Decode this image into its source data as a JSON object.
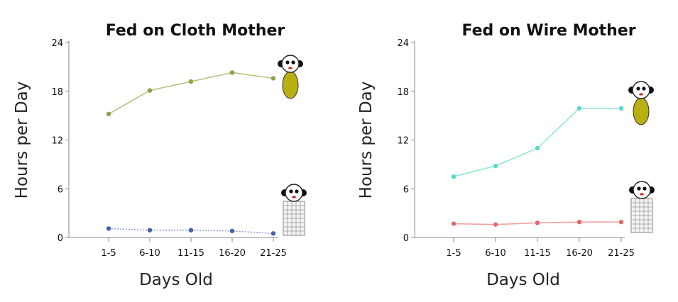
{
  "chart_data": [
    {
      "type": "line",
      "title": "Fed on Cloth Mother",
      "xlabel": "Days Old",
      "ylabel": "Hours per Day",
      "categories": [
        "1-5",
        "6-10",
        "11-15",
        "16-20",
        "21-25"
      ],
      "ylim": [
        0,
        24
      ],
      "yticks": [
        0,
        6,
        12,
        18,
        24
      ],
      "grid": false,
      "series": [
        {
          "values": [
            15.2,
            18.1,
            19.2,
            20.3,
            19.6
          ],
          "color": "#b5c27a",
          "marker": "#8aa14a",
          "icon": "cloth-mother-icon"
        },
        {
          "values": [
            1.1,
            0.9,
            0.9,
            0.8,
            0.5
          ],
          "color": "#8fa0d8",
          "marker": "#4a5fb0",
          "icon": "wire-mother-icon"
        }
      ]
    },
    {
      "type": "line",
      "title": "Fed on Wire Mother",
      "xlabel": "Days Old",
      "ylabel": "Hours per Day",
      "categories": [
        "1-5",
        "6-10",
        "11-15",
        "16-20",
        "21-25"
      ],
      "ylim": [
        0,
        24
      ],
      "yticks": [
        0,
        6,
        12,
        18,
        24
      ],
      "grid": false,
      "series": [
        {
          "values": [
            7.5,
            8.8,
            11.0,
            15.9,
            15.9
          ],
          "color": "#8fe8d8",
          "marker": "#5ad8c8",
          "icon": "cloth-mother-icon"
        },
        {
          "values": [
            1.7,
            1.6,
            1.8,
            1.9,
            1.9
          ],
          "color": "#f0a0a0",
          "marker": "#e06a6a",
          "icon": "wire-mother-icon"
        }
      ]
    }
  ]
}
